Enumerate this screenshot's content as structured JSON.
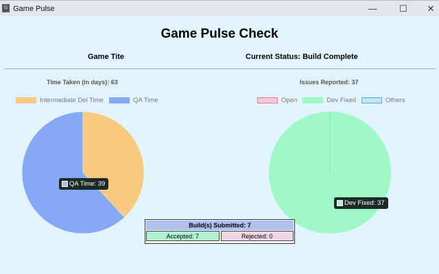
{
  "window": {
    "title": "Game Pulse",
    "icon_letter": "G",
    "minimize": "—",
    "maximize": "☐",
    "close": "✕"
  },
  "header": {
    "title": "Game Pulse Check",
    "game_title": "Game Tite",
    "status": "Current Status: Build Complete"
  },
  "chart_data": [
    {
      "type": "pie",
      "title": "Time Taken (in days): 63",
      "legend_position": "top",
      "series": [
        {
          "name": "Intermediate Del Time",
          "value": 24,
          "color": "#f6c97e"
        },
        {
          "name": "QA Time",
          "value": 39,
          "color": "#86a8f5"
        }
      ],
      "tooltip": "QA Time: 39"
    },
    {
      "type": "pie",
      "title": "Issues Reported: 37",
      "legend_position": "top",
      "series": [
        {
          "name": "Open",
          "value": 0,
          "color": "#f2c9d6"
        },
        {
          "name": "Dev Fixed",
          "value": 37,
          "color": "#9ef7c6"
        },
        {
          "name": "Others",
          "value": 0,
          "color": "#bfe3f7"
        }
      ],
      "tooltip": "Dev Fixed: 37"
    }
  ],
  "builds": {
    "title": "Build(s) Submitted: 7",
    "accepted": "Accepted: 7",
    "rejected": "Rejected: 0",
    "accepted_color": "#b2f0d2",
    "rejected_color": "#eed6e2"
  }
}
